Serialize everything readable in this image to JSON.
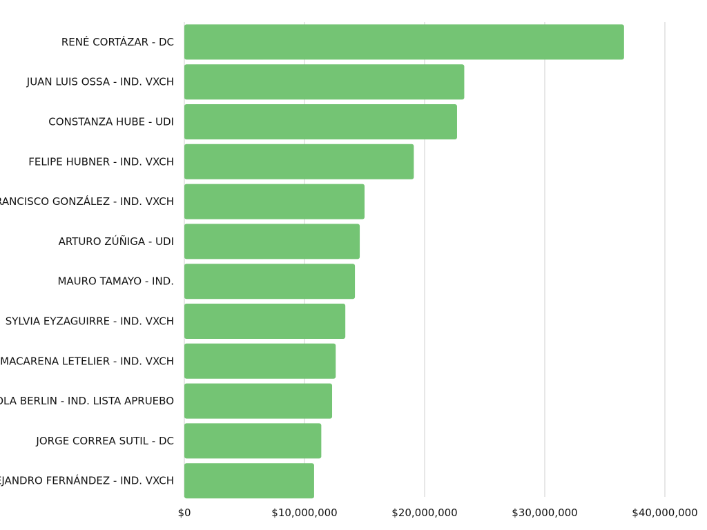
{
  "chart_data": {
    "type": "bar",
    "orientation": "horizontal",
    "categories": [
      "RENÉ CORTÁZAR - DC",
      "JUAN LUIS OSSA - IND. VXCH",
      "CONSTANZA HUBE - UDI",
      "FELIPE HUBNER - IND. VXCH",
      "FRANCISCO GONZÁLEZ - IND. VXCH",
      "ARTURO ZÚÑIGA - UDI",
      "MAURO TAMAYO - IND.",
      "SYLVIA EYZAGUIRRE - IND. VXCH",
      "MACARENA LETELIER - IND. VXCH",
      "PAOLA BERLIN - IND. LISTA APRUEBO",
      "JORGE CORREA SUTIL - DC",
      "ALEJANDRO FERNÁNDEZ - IND. VXCH"
    ],
    "values": [
      36600000,
      23300000,
      22700000,
      19100000,
      15000000,
      14600000,
      14200000,
      13400000,
      12600000,
      12300000,
      11400000,
      10800000
    ],
    "xlim": [
      0,
      40000000
    ],
    "xticks": [
      0,
      10000000,
      20000000,
      30000000,
      40000000
    ],
    "xtick_labels": [
      "$0",
      "$10,000,000",
      "$20,000,000",
      "$30,000,000",
      "$40,000,000"
    ],
    "grid": true,
    "legend": "none",
    "bar_color": "#74c474"
  }
}
